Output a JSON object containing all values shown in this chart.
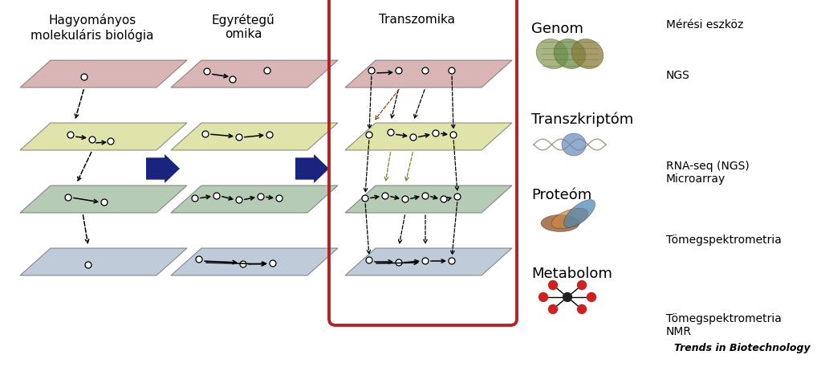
{
  "bg_color": "#ffffff",
  "title_col1": "Hagyományos\nmolekuláris biológia",
  "title_col2": "Egyrétegű\nomika",
  "title_col3": "Transzomika",
  "plate_colors": {
    "pink": "#cc9999",
    "yellow": "#d4d98a",
    "green": "#9ab89a",
    "blue": "#a8b8cc"
  },
  "right_labels_omics": [
    "Genom",
    "Transzkriptóm",
    "Proteóm",
    "Metabolom"
  ],
  "right_labels_tools_header": "Mérési eszköz",
  "tool_labels": [
    "NGS",
    "RNA-seq (NGS)\nMicroarray",
    "Tömegspektrometria",
    "Tömegspektrometria\nNMR"
  ],
  "footer_text": "Trends in Biotechnology",
  "arrow_color_large": "#1a237e",
  "transzomika_box_color": "#b22222",
  "font_size_titles": 11,
  "font_size_omics": 13,
  "font_size_tools": 10,
  "font_size_footer": 9
}
